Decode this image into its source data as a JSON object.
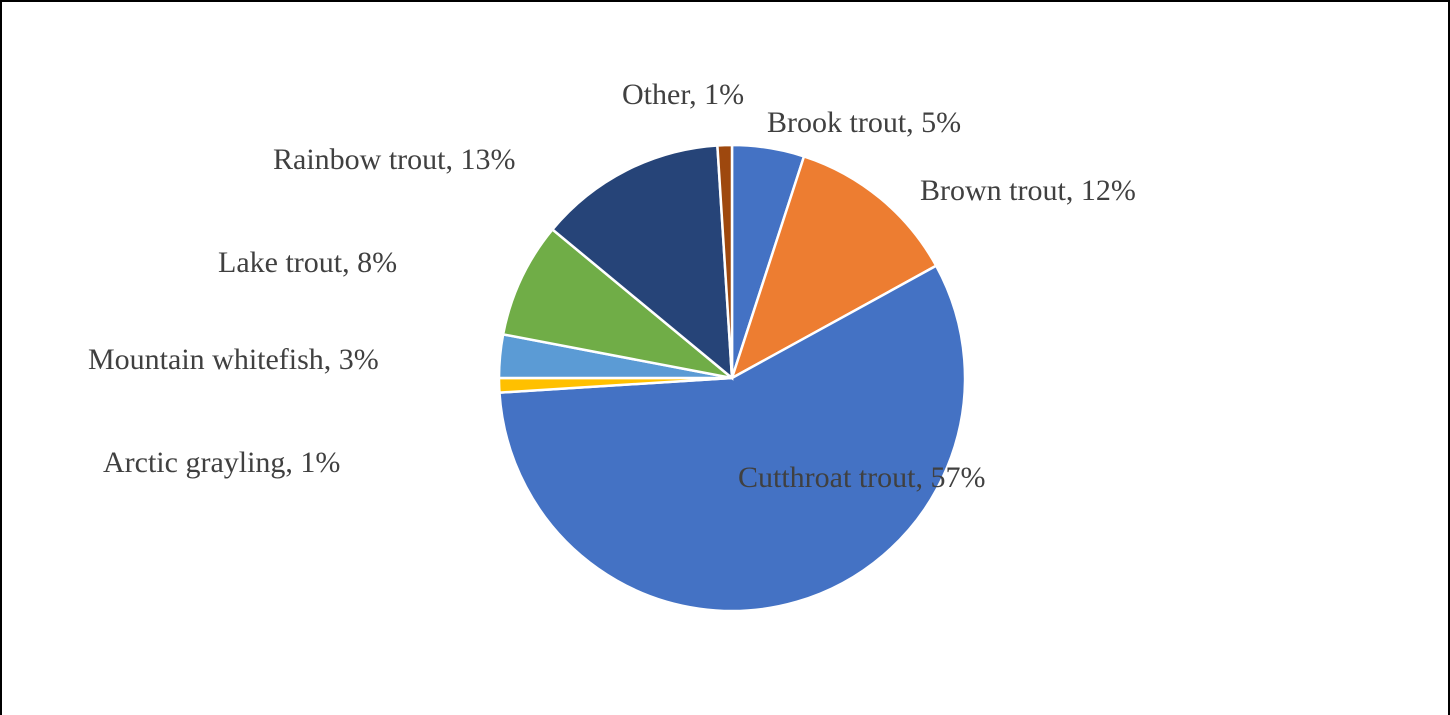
{
  "chart_data": {
    "type": "pie",
    "values": [
      5,
      12,
      57,
      1,
      3,
      8,
      13,
      1
    ],
    "value_labels": [
      "Brook trout, 5%",
      "Brown trout, 12%",
      "Cutthroat trout, 57%",
      "Arctic grayling, 1%",
      "Mountain whitefish, 3%",
      "Lake trout, 8%",
      "Rainbow trout, 13%",
      "Other, 1%"
    ],
    "colors": [
      "#4472c4",
      "#ed7d31",
      "#4472c4",
      "#ffc000",
      "#5b9bd5",
      "#70ad47",
      "#264478",
      "#9e480e"
    ]
  }
}
